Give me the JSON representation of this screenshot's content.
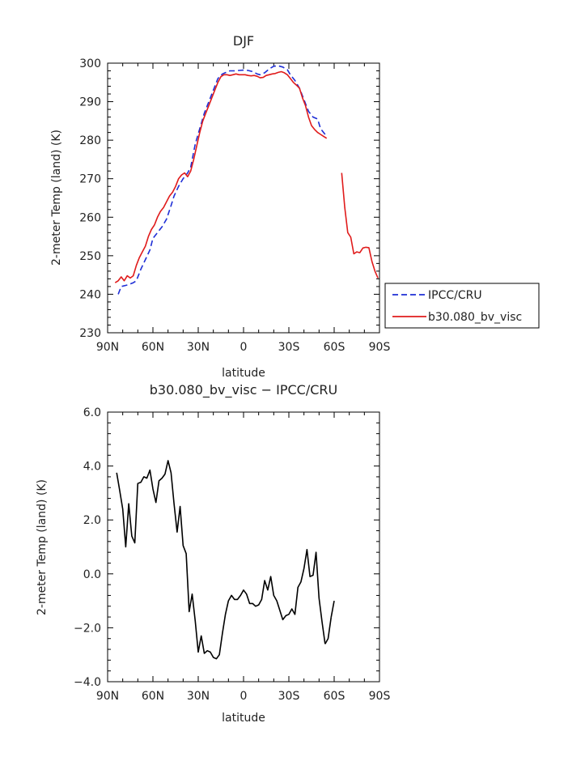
{
  "chart_data": [
    {
      "type": "line",
      "title": "DJF",
      "xlabel": "latitude",
      "ylabel": "2-meter Temp (land) (K)",
      "xlim": [
        90,
        -90
      ],
      "ylim": [
        230,
        300
      ],
      "x_ticks": [
        90,
        60,
        30,
        0,
        -30,
        -60,
        -90
      ],
      "x_tick_labels": [
        "90N",
        "60N",
        "30N",
        "0",
        "30S",
        "60S",
        "90S"
      ],
      "y_ticks": [
        230,
        240,
        250,
        260,
        270,
        280,
        290,
        300
      ],
      "y_tick_labels": [
        "230",
        "240",
        "250",
        "260",
        "270",
        "280",
        "290",
        "300"
      ],
      "legend_position": "right",
      "series": [
        {
          "name": "IPCC/CRU",
          "color": "#1f2fd6",
          "dash": "dashed",
          "segments": [
            {
              "x": [
                83,
                81,
                78,
                76,
                73,
                71,
                68,
                65,
                62,
                60,
                57,
                54,
                51,
                48,
                46,
                43,
                40,
                37,
                35,
                32,
                29,
                26,
                23,
                20,
                17,
                14,
                11,
                9,
                6,
                3,
                0,
                -3,
                -6,
                -9,
                -11,
                -14,
                -17,
                -20,
                -23,
                -26,
                -29,
                -31,
                -34,
                -37,
                -40,
                -43,
                -46,
                -49,
                -51,
                -54
              ],
              "y": [
                240,
                242,
                242.3,
                242.5,
                243,
                243.5,
                246.5,
                249,
                251.5,
                254.5,
                256,
                257.5,
                259.5,
                263,
                265.5,
                268,
                270,
                271.5,
                273,
                279,
                283,
                287,
                290,
                293,
                296,
                297.2,
                297.7,
                298,
                298,
                298.1,
                298.2,
                298.1,
                297.8,
                297.2,
                297,
                297.5,
                298.5,
                299.2,
                299.3,
                299,
                298.3,
                297,
                295.5,
                293.5,
                290.5,
                287.5,
                286,
                285.5,
                283,
                281.5
              ]
            }
          ]
        },
        {
          "name": "b30.080_bv_visc",
          "color": "#e01b1b",
          "dash": "solid",
          "segments": [
            {
              "x": [
                85,
                83,
                81,
                79,
                77,
                75,
                73,
                71,
                69,
                67,
                65,
                63,
                61,
                59,
                57,
                55,
                53,
                51,
                49,
                47,
                45,
                43,
                41,
                39,
                37,
                35,
                33,
                31,
                29,
                27,
                25,
                23,
                21,
                19,
                17,
                15,
                13,
                11,
                9,
                7,
                5,
                3,
                1,
                -1,
                -3,
                -5,
                -7,
                -9,
                -11,
                -13,
                -15,
                -17,
                -19,
                -21,
                -23,
                -25,
                -27,
                -29,
                -31,
                -33,
                -35,
                -37,
                -39,
                -41,
                -43,
                -45,
                -47,
                -49,
                -51,
                -53,
                -55
              ],
              "y": [
                243,
                243.5,
                244.5,
                243.5,
                244.8,
                244.2,
                244.8,
                247.5,
                249.5,
                251,
                252.5,
                255,
                256.8,
                258,
                260,
                261.5,
                262.5,
                264,
                265.5,
                266.5,
                268,
                270,
                271,
                271.5,
                270.5,
                272,
                275,
                278.5,
                282,
                285,
                287,
                289,
                291,
                293,
                295,
                296.5,
                297,
                297,
                296.8,
                297,
                297.2,
                297,
                297,
                297,
                296.8,
                296.7,
                296.8,
                296.6,
                296.2,
                296.3,
                296.8,
                297,
                297.2,
                297.3,
                297.6,
                297.8,
                297.5,
                297,
                296,
                295,
                294.3,
                293.5,
                291,
                289,
                286,
                283.8,
                282.8,
                282,
                281.5,
                281,
                280.5
              ]
            },
            {
              "x": [
                -65,
                -67,
                -69,
                -71,
                -73,
                -75,
                -77,
                -79,
                -81,
                -83,
                -85,
                -87,
                -89
              ],
              "y": [
                271.5,
                262.5,
                256,
                254.8,
                250.5,
                251,
                250.8,
                252,
                252.2,
                252.1,
                248.5,
                246,
                244.2
              ]
            }
          ]
        }
      ]
    },
    {
      "type": "line",
      "title": "b30.080_bv_visc − IPCC/CRU",
      "xlabel": "latitude",
      "ylabel": "2-meter Temp (land) (K)",
      "xlim": [
        90,
        -90
      ],
      "ylim": [
        -4,
        6
      ],
      "x_ticks": [
        90,
        60,
        30,
        0,
        -30,
        -60,
        -90
      ],
      "x_tick_labels": [
        "90N",
        "60N",
        "30N",
        "0",
        "30S",
        "60S",
        "90S"
      ],
      "y_ticks": [
        -4,
        -2,
        0,
        2,
        4,
        6
      ],
      "y_tick_labels": [
        "−4.0",
        "−2.0",
        "0.0",
        "2.0",
        "4.0",
        "6.0"
      ],
      "series": [
        {
          "name": "b30.080_bv_visc − IPCC/CRU",
          "color": "#000000",
          "dash": "solid",
          "segments": [
            {
              "x": [
                84,
                82,
                80,
                78,
                76,
                74,
                72,
                70,
                68,
                66,
                64,
                62,
                60,
                58,
                56,
                54,
                52,
                50,
                48,
                46,
                44,
                42,
                40,
                38,
                36,
                34,
                32,
                30,
                28,
                26,
                24,
                22,
                20,
                18,
                16,
                14,
                12,
                10,
                8,
                6,
                4,
                2,
                0,
                -2,
                -4,
                -6,
                -8,
                -10,
                -12,
                -14,
                -16,
                -18,
                -20,
                -22,
                -24,
                -26,
                -28,
                -30,
                -32,
                -34,
                -36,
                -38,
                -40,
                -42,
                -44,
                -46,
                -48,
                -50,
                -52,
                -54
              ],
              "y": [
                3.75,
                3.1,
                2.4,
                1.0,
                2.6,
                1.4,
                1.15,
                3.35,
                3.4,
                3.6,
                3.55,
                3.85,
                3.15,
                2.65,
                3.45,
                3.55,
                3.7,
                4.2,
                3.75,
                2.6,
                1.55,
                2.5,
                1.05,
                0.75,
                -1.4,
                -0.75,
                -1.75,
                -2.9,
                -2.3,
                -2.95,
                -2.85,
                -2.9,
                -3.1,
                -3.15,
                -3.0,
                -2.2,
                -1.5,
                -1.0,
                -0.8,
                -0.95,
                -0.95,
                -0.8,
                -0.6,
                -0.75,
                -1.1,
                -1.1,
                -1.2,
                -1.15,
                -0.95,
                -0.25,
                -0.6,
                -0.1,
                -0.8,
                -1.0,
                -1.35,
                -1.7,
                -1.55,
                -1.5,
                -1.3,
                -1.5,
                -0.5,
                -0.3,
                0.2,
                0.9,
                -0.1,
                -0.05,
                0.8,
                -0.9,
                -1.8,
                -2.6
              ]
            },
            {
              "x": [
                -54,
                -56,
                -58
              ],
              "y": [
                -2.6,
                -2.4,
                -1.6
              ]
            },
            {
              "x": [
                -58,
                -60
              ],
              "y": [
                -1.6,
                -1.0
              ]
            }
          ]
        }
      ]
    }
  ]
}
